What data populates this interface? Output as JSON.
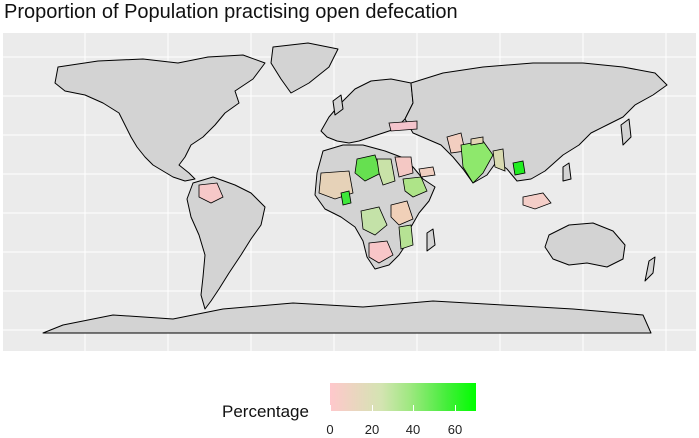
{
  "title": "Proportion of Population practising open defecation",
  "legend": {
    "title": "Percentage",
    "ticks": [
      "0",
      "20",
      "40",
      "60"
    ],
    "min": 0,
    "max": 70,
    "low_color": "#ffc8cc",
    "high_color": "#00ff00"
  },
  "colors": {
    "panel_background": "#ebebeb",
    "land_no_data": "#d3d3d3",
    "border": "#000000"
  },
  "map_data": {
    "type": "choropleth",
    "regions_shaded": [
      "Central America / Colombia",
      "West Africa",
      "Niger",
      "Chad",
      "Sudan",
      "Ethiopia",
      "Congo / Central Africa",
      "East Africa",
      "Mozambique",
      "Southern Africa",
      "India",
      "Pakistan",
      "Nepal",
      "Myanmar",
      "Cambodia",
      "Indonesia",
      "Turkey",
      "Yemen"
    ]
  }
}
